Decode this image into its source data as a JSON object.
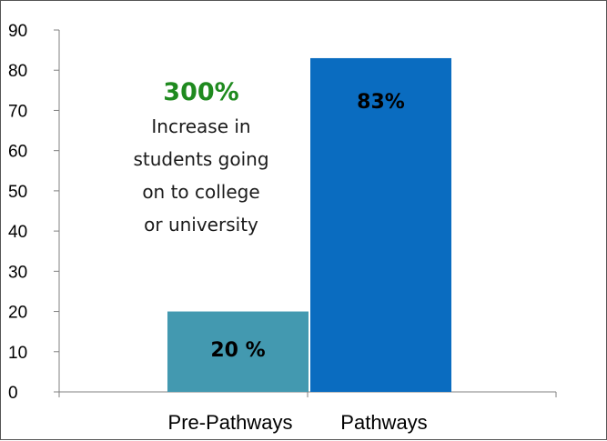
{
  "chart_data": {
    "type": "bar",
    "categories": [
      "Pre-Pathways",
      "Pathways"
    ],
    "values": [
      20,
      83
    ],
    "data_labels": [
      "20 %",
      "83%"
    ],
    "bar_colors": [
      "#4399b0",
      "#0a6cc0"
    ],
    "ylim": [
      0,
      90
    ],
    "yticks": [
      "0",
      "10",
      "20",
      "30",
      "40",
      "50",
      "60",
      "70",
      "80",
      "90"
    ],
    "title": "",
    "xlabel": "",
    "ylabel": "",
    "grid": false,
    "legend": "none"
  },
  "annotation": {
    "highlight": "300%",
    "highlight_color": "#1f8a1f",
    "lines": [
      "Increase in",
      "students going",
      "on to college",
      "or university"
    ]
  }
}
